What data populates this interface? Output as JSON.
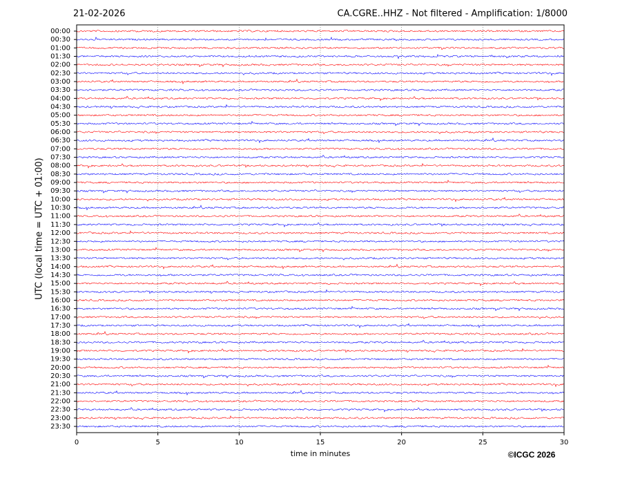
{
  "chart_data": {
    "type": "helicorder",
    "date": "21-02-2026",
    "title": "CA.CGRE..HHZ - Not filtered - Amplification: 1/8000",
    "ylabel": "UTC (local time = UTC + 01:00)",
    "xlabel": "time in minutes",
    "credit": "©ICGC 2026",
    "categories": [
      "00:00",
      "00:30",
      "01:00",
      "01:30",
      "02:00",
      "02:30",
      "03:00",
      "03:30",
      "04:00",
      "04:30",
      "05:00",
      "05:30",
      "06:00",
      "06:30",
      "07:00",
      "07:30",
      "08:00",
      "08:30",
      "09:00",
      "09:30",
      "10:00",
      "10:30",
      "11:00",
      "11:30",
      "12:00",
      "12:30",
      "13:00",
      "13:30",
      "14:00",
      "14:30",
      "15:00",
      "15:30",
      "16:00",
      "16:30",
      "17:00",
      "17:30",
      "18:00",
      "18:30",
      "19:00",
      "19:30",
      "20:00",
      "20:30",
      "21:00",
      "21:30",
      "22:00",
      "22:30",
      "23:00",
      "23:30"
    ],
    "colors": [
      "#ff0000",
      "#0000ff"
    ],
    "xlim": [
      0,
      30
    ],
    "xticks": [
      0,
      5,
      10,
      15,
      20,
      25,
      30
    ],
    "grid": true
  }
}
